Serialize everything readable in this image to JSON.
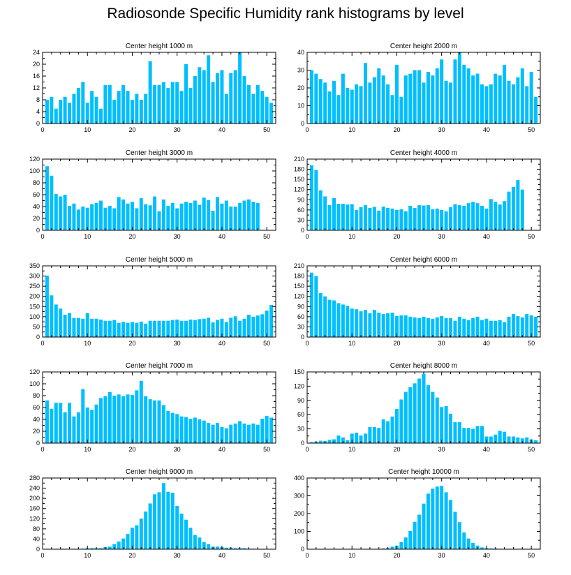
{
  "title": "Radiosonde Specific Humidity rank histograms by level",
  "colors": {
    "bar": "#00BFFF",
    "axis": "#000000",
    "background": "#FFFFFF"
  },
  "chart_data": [
    {
      "type": "bar",
      "title": "Center height 1000 m",
      "x_start": 1,
      "xlim": [
        0,
        52
      ],
      "ylim": [
        0,
        24
      ],
      "xticks": [
        0,
        10,
        20,
        30,
        40,
        50
      ],
      "yticks": [
        0,
        4,
        8,
        12,
        16,
        20,
        24
      ],
      "grid": false,
      "values": [
        8,
        9,
        5,
        8,
        9,
        7,
        10,
        12,
        14,
        7,
        11,
        9,
        5,
        13,
        13,
        8,
        11,
        13,
        11,
        8,
        10,
        8,
        10,
        21,
        13,
        13,
        14,
        12,
        14,
        14,
        11,
        20,
        12,
        16,
        19,
        18,
        23,
        14,
        17,
        18,
        10,
        17,
        18,
        24,
        16,
        13,
        10,
        13,
        11,
        9,
        7
      ]
    },
    {
      "type": "bar",
      "title": "Center height 2000 m",
      "x_start": 1,
      "xlim": [
        0,
        52
      ],
      "ylim": [
        0,
        40
      ],
      "xticks": [
        0,
        10,
        20,
        30,
        40,
        50
      ],
      "yticks": [
        0,
        10,
        20,
        30,
        40
      ],
      "grid": false,
      "values": [
        30,
        28,
        25,
        23,
        18,
        24,
        16,
        28,
        20,
        19,
        22,
        21,
        34,
        23,
        26,
        31,
        27,
        22,
        16,
        33,
        15,
        27,
        28,
        30,
        30,
        23,
        29,
        27,
        31,
        36,
        24,
        23,
        36,
        40,
        33,
        31,
        27,
        28,
        22,
        21,
        22,
        28,
        27,
        33,
        24,
        22,
        26,
        31,
        21,
        29,
        15
      ]
    },
    {
      "type": "bar",
      "title": "Center height 3000 m",
      "x_start": 1,
      "xlim": [
        0,
        52
      ],
      "ylim": [
        0,
        120
      ],
      "xticks": [
        0,
        10,
        20,
        30,
        40,
        50
      ],
      "yticks": [
        0,
        20,
        40,
        60,
        80,
        100,
        120
      ],
      "grid": false,
      "values": [
        108,
        92,
        61,
        57,
        60,
        41,
        45,
        35,
        40,
        38,
        44,
        46,
        50,
        38,
        41,
        37,
        56,
        52,
        45,
        48,
        37,
        54,
        44,
        42,
        57,
        32,
        52,
        41,
        46,
        37,
        45,
        48,
        46,
        50,
        43,
        55,
        51,
        33,
        56,
        45,
        50,
        40,
        40,
        46,
        50,
        52,
        48,
        46,
        0,
        0,
        0
      ]
    },
    {
      "type": "bar",
      "title": "Center height 4000 m",
      "x_start": 1,
      "xlim": [
        0,
        52
      ],
      "ylim": [
        0,
        210
      ],
      "xticks": [
        0,
        10,
        20,
        30,
        40,
        50
      ],
      "yticks": [
        0,
        30,
        60,
        90,
        120,
        150,
        180,
        210
      ],
      "grid": false,
      "values": [
        192,
        178,
        118,
        100,
        74,
        95,
        78,
        78,
        76,
        77,
        60,
        68,
        74,
        66,
        69,
        58,
        70,
        66,
        64,
        60,
        62,
        56,
        72,
        66,
        74,
        73,
        74,
        62,
        64,
        60,
        56,
        68,
        77,
        74,
        72,
        80,
        84,
        80,
        72,
        64,
        92,
        84,
        76,
        86,
        114,
        128,
        148,
        120,
        0,
        0,
        0
      ]
    },
    {
      "type": "bar",
      "title": "Center height 5000 m",
      "x_start": 1,
      "xlim": [
        0,
        52
      ],
      "ylim": [
        0,
        350
      ],
      "xticks": [
        0,
        10,
        20,
        30,
        40,
        50
      ],
      "yticks": [
        0,
        50,
        100,
        150,
        200,
        250,
        300,
        350
      ],
      "grid": false,
      "values": [
        302,
        205,
        160,
        140,
        110,
        118,
        94,
        94,
        90,
        118,
        90,
        90,
        86,
        80,
        80,
        84,
        70,
        75,
        70,
        74,
        70,
        76,
        66,
        80,
        80,
        80,
        80,
        80,
        84,
        86,
        80,
        80,
        86,
        84,
        88,
        90,
        95,
        72,
        84,
        90,
        74,
        95,
        102,
        80,
        90,
        110,
        100,
        106,
        112,
        130,
        158
      ]
    },
    {
      "type": "bar",
      "title": "Center height 6000 m",
      "x_start": 1,
      "xlim": [
        0,
        52
      ],
      "ylim": [
        0,
        210
      ],
      "xticks": [
        0,
        10,
        20,
        30,
        40,
        50
      ],
      "yticks": [
        0,
        30,
        60,
        90,
        120,
        150,
        180,
        210
      ],
      "grid": false,
      "values": [
        190,
        180,
        130,
        120,
        110,
        108,
        100,
        96,
        92,
        84,
        82,
        76,
        80,
        70,
        80,
        72,
        68,
        70,
        72,
        62,
        64,
        64,
        60,
        58,
        56,
        60,
        56,
        54,
        58,
        62,
        56,
        56,
        48,
        60,
        54,
        50,
        56,
        60,
        50,
        54,
        48,
        48,
        50,
        44,
        60,
        68,
        62,
        58,
        68,
        64,
        60
      ]
    },
    {
      "type": "bar",
      "title": "Center height 7000 m",
      "x_start": 1,
      "xlim": [
        0,
        52
      ],
      "ylim": [
        0,
        120
      ],
      "xticks": [
        0,
        10,
        20,
        30,
        40,
        50
      ],
      "yticks": [
        0,
        20,
        40,
        60,
        80,
        100,
        120
      ],
      "grid": false,
      "values": [
        72,
        58,
        68,
        68,
        52,
        68,
        45,
        52,
        91,
        60,
        56,
        65,
        76,
        79,
        86,
        80,
        82,
        79,
        82,
        81,
        89,
        105,
        79,
        74,
        72,
        72,
        64,
        54,
        51,
        49,
        45,
        44,
        41,
        43,
        40,
        38,
        34,
        31,
        34,
        27,
        25,
        31,
        33,
        37,
        33,
        31,
        33,
        31,
        41,
        46,
        43
      ]
    },
    {
      "type": "bar",
      "title": "Center height 8000 m",
      "x_start": 1,
      "xlim": [
        0,
        52
      ],
      "ylim": [
        0,
        150
      ],
      "xticks": [
        0,
        10,
        20,
        30,
        40,
        50
      ],
      "yticks": [
        0,
        30,
        60,
        90,
        120,
        150
      ],
      "grid": false,
      "values": [
        2,
        3,
        5,
        4,
        7,
        8,
        16,
        12,
        6,
        20,
        22,
        16,
        20,
        34,
        34,
        32,
        50,
        46,
        56,
        72,
        92,
        108,
        118,
        126,
        136,
        146,
        122,
        108,
        96,
        76,
        78,
        62,
        44,
        44,
        32,
        32,
        30,
        36,
        36,
        14,
        14,
        18,
        26,
        24,
        14,
        14,
        12,
        10,
        12,
        8,
        6
      ]
    },
    {
      "type": "bar",
      "title": "Center height 9000 m",
      "x_start": 1,
      "xlim": [
        0,
        52
      ],
      "ylim": [
        0,
        280
      ],
      "xticks": [
        0,
        10,
        20,
        30,
        40,
        50
      ],
      "yticks": [
        0,
        40,
        80,
        120,
        160,
        200,
        240,
        280
      ],
      "grid": false,
      "values": [
        0,
        0,
        0,
        0,
        0,
        0,
        0,
        0,
        2,
        4,
        4,
        4,
        4,
        8,
        10,
        20,
        30,
        42,
        60,
        84,
        94,
        120,
        148,
        180,
        216,
        224,
        260,
        226,
        222,
        170,
        140,
        116,
        84,
        56,
        46,
        28,
        20,
        10,
        10,
        8,
        6,
        6,
        4,
        4,
        4,
        2,
        2,
        0,
        0,
        0,
        0
      ]
    },
    {
      "type": "bar",
      "title": "Center height 10000 m",
      "x_start": 1,
      "xlim": [
        0,
        52
      ],
      "ylim": [
        0,
        400
      ],
      "xticks": [
        0,
        10,
        20,
        30,
        40,
        50
      ],
      "yticks": [
        0,
        100,
        200,
        300,
        400
      ],
      "grid": false,
      "values": [
        0,
        0,
        0,
        0,
        0,
        0,
        0,
        0,
        0,
        0,
        0,
        0,
        0,
        0,
        0,
        2,
        4,
        6,
        14,
        20,
        40,
        66,
        102,
        154,
        194,
        256,
        312,
        340,
        352,
        356,
        320,
        276,
        210,
        152,
        94,
        60,
        36,
        20,
        10,
        6,
        4,
        4,
        2,
        2,
        2,
        2,
        2,
        0,
        0,
        0,
        0
      ]
    }
  ]
}
